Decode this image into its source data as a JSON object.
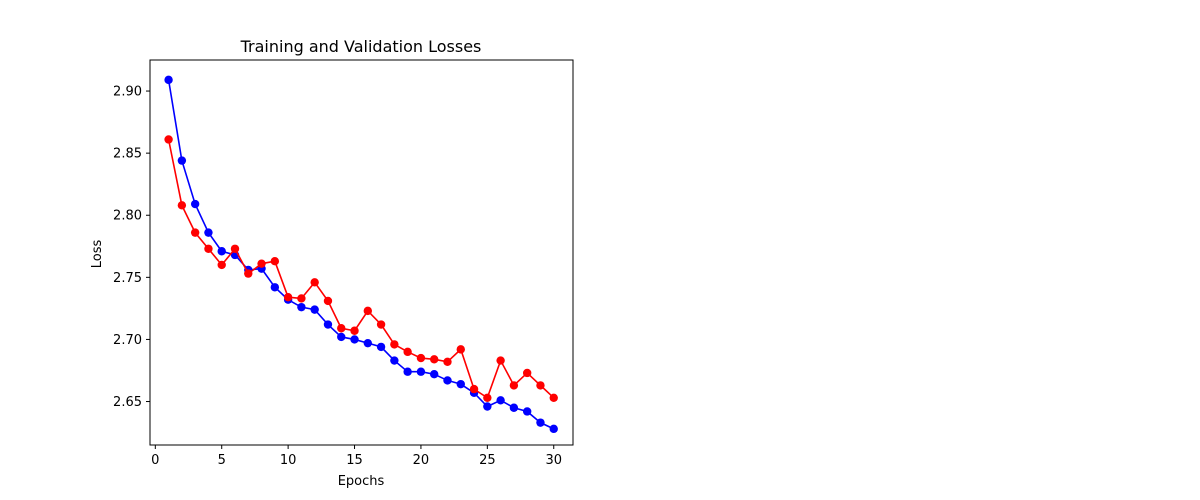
{
  "chart_data": {
    "type": "line",
    "title": "Training and Validation Losses",
    "xlabel": "Epochs",
    "ylabel": "Loss",
    "xlim": [
      -0.4,
      31.45
    ],
    "ylim": [
      2.615,
      2.925
    ],
    "xticks": [
      0,
      5,
      10,
      15,
      20,
      25,
      30
    ],
    "yticks": [
      2.65,
      2.7,
      2.75,
      2.8,
      2.85,
      2.9
    ],
    "grid": false,
    "x": [
      1,
      2,
      3,
      4,
      5,
      6,
      7,
      8,
      9,
      10,
      11,
      12,
      13,
      14,
      15,
      16,
      17,
      18,
      19,
      20,
      21,
      22,
      23,
      24,
      25,
      26,
      27,
      28,
      29,
      30
    ],
    "series": [
      {
        "color": "#0000ff",
        "marker": "circle",
        "values": [
          2.909,
          2.844,
          2.809,
          2.786,
          2.771,
          2.768,
          2.756,
          2.757,
          2.742,
          2.732,
          2.726,
          2.724,
          2.712,
          2.702,
          2.7,
          2.697,
          2.694,
          2.683,
          2.674,
          2.674,
          2.672,
          2.667,
          2.664,
          2.657,
          2.646,
          2.651,
          2.645,
          2.642,
          2.633,
          2.628
        ]
      },
      {
        "color": "#ff0000",
        "marker": "circle",
        "values": [
          2.861,
          2.808,
          2.786,
          2.773,
          2.76,
          2.773,
          2.753,
          2.761,
          2.763,
          2.734,
          2.733,
          2.746,
          2.731,
          2.709,
          2.707,
          2.723,
          2.712,
          2.696,
          2.69,
          2.685,
          2.684,
          2.682,
          2.692,
          2.66,
          2.653,
          2.683,
          2.663,
          2.673,
          2.663,
          2.653
        ]
      }
    ]
  }
}
